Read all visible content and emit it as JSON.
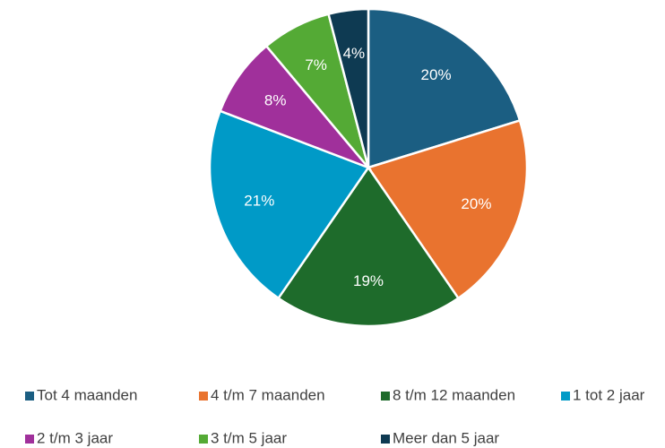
{
  "chart_data": {
    "type": "pie",
    "categories": [
      "Tot 4 maanden",
      "4 t/m 7 maanden",
      "8 t/m 12 maanden",
      "1 tot 2 jaar",
      "2 t/m 3 jaar",
      "3 t/m 5 jaar",
      "Meer dan 5 jaar"
    ],
    "values": [
      20,
      20,
      19,
      21,
      8,
      7,
      4
    ],
    "value_labels": [
      "20%",
      "20%",
      "19%",
      "21%",
      "8%",
      "7%",
      "4%"
    ],
    "colors": [
      "#1b5e82",
      "#e9732f",
      "#1e6b2b",
      "#009ac7",
      "#a0309b",
      "#54aa35",
      "#0e3a52"
    ],
    "legend": "bottom"
  }
}
